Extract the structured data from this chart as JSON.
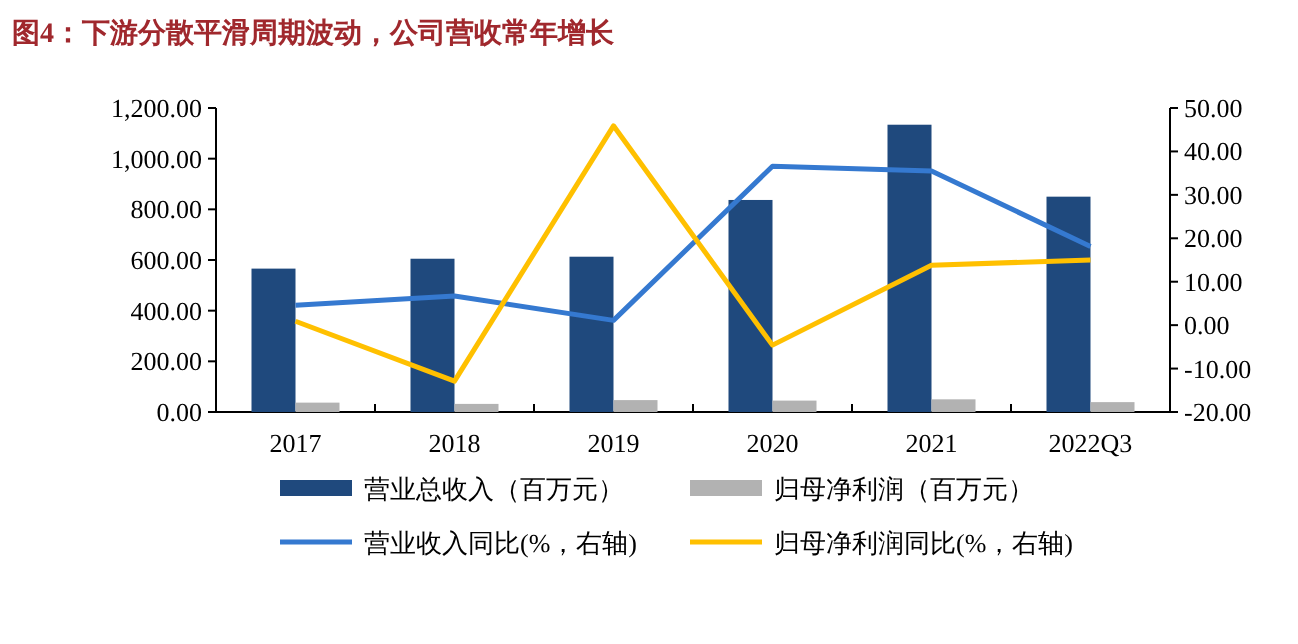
{
  "chart_data": {
    "type": "bar",
    "title": "图4：下游分散平滑周期波动，公司营收常年增长",
    "categories": [
      "2017",
      "2018",
      "2019",
      "2020",
      "2021",
      "2022Q3"
    ],
    "series": [
      {
        "name": "营业总收入（百万元）",
        "color": "#1f497d",
        "values": [
          566,
          605,
          613,
          837,
          1134,
          850
        ]
      },
      {
        "name": "归母净利润（百万元）",
        "color": "#b2b2b2",
        "values": [
          37,
          32,
          47,
          45,
          50,
          39
        ]
      },
      {
        "name": "营业收入同比(%，右轴)",
        "type": "line",
        "axis": "y2",
        "color": "#3579d0",
        "values": [
          4.6,
          6.7,
          1.1,
          36.6,
          35.5,
          18.1
        ]
      },
      {
        "name": "归母净利润同比(%，右轴)",
        "type": "line",
        "axis": "y2",
        "color": "#ffc000",
        "values": [
          0.9,
          -12.9,
          45.9,
          -4.6,
          13.8,
          15.0
        ]
      }
    ],
    "ylim": [
      0,
      1200
    ],
    "yticks": [
      {
        "value": 0,
        "label": "0.00"
      },
      {
        "value": 200,
        "label": "200.00"
      },
      {
        "value": 400,
        "label": "400.00"
      },
      {
        "value": 600,
        "label": "600.00"
      },
      {
        "value": 800,
        "label": "800.00"
      },
      {
        "value": 1000,
        "label": "1,000.00"
      },
      {
        "value": 1200,
        "label": "1,200.00"
      }
    ],
    "y2lim": [
      -20,
      50
    ],
    "y2ticks": [
      {
        "value": -20,
        "label": "-20.00"
      },
      {
        "value": -10,
        "label": "-10.00"
      },
      {
        "value": 0,
        "label": "0.00"
      },
      {
        "value": 10,
        "label": "10.00"
      },
      {
        "value": 20,
        "label": "20.00"
      },
      {
        "value": 30,
        "label": "30.00"
      },
      {
        "value": 40,
        "label": "40.00"
      },
      {
        "value": 50,
        "label": "50.00"
      }
    ],
    "legend": "bottom",
    "grid": false,
    "marker": "none"
  }
}
